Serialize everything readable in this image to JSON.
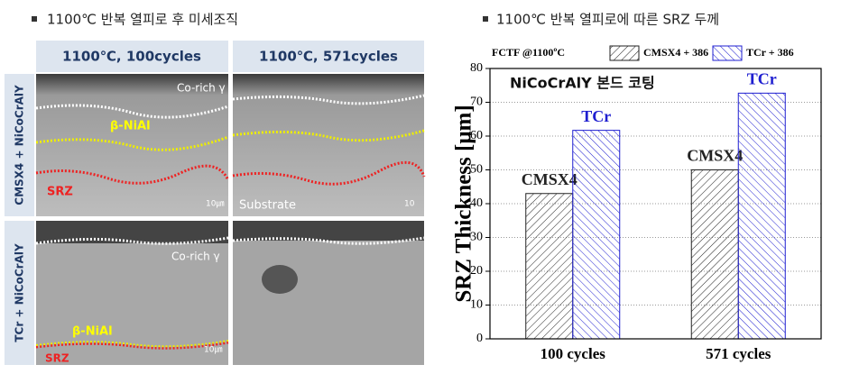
{
  "left_panel": {
    "heading": "1100℃ 반복 열피로 후 미세조직",
    "columns": [
      "1100℃, 100cycles",
      "1100℃, 571cycles"
    ],
    "rows": [
      "CMSX4 + NiCoCrAlY",
      "TCr + NiCoCrAlY"
    ],
    "image_labels": {
      "top_left": [
        "Co-rich γ",
        "β-NiAl",
        "SRZ",
        "10㎛"
      ],
      "top_right": [
        "Substrate",
        "10"
      ],
      "bottom_left": [
        "Co-rich γ",
        "β-NiAl",
        "10㎛",
        "SRZ"
      ]
    }
  },
  "right_panel": {
    "heading": "1100℃ 반복 열피로에 따른 SRZ 두께"
  },
  "chart_data": {
    "type": "bar",
    "legend_title": "FCTF @1100ºC",
    "annotation": "NiCoCrAlY 본드 코팅",
    "ylabel": "SRZ Thickness [μm]",
    "categories": [
      "100 cycles",
      "571 cycles"
    ],
    "series": [
      {
        "name": "CMSX4 + 386",
        "label": "CMSX4",
        "color": "#222222",
        "values": [
          43,
          50
        ]
      },
      {
        "name": "TCr + 386",
        "label": "TCr",
        "color": "#1f1fd0",
        "values": [
          61.7,
          72.7
        ]
      }
    ],
    "ylim": [
      0,
      80
    ],
    "yticks": [
      0,
      10,
      20,
      30,
      40,
      50,
      60,
      70,
      80
    ],
    "grid": true
  }
}
